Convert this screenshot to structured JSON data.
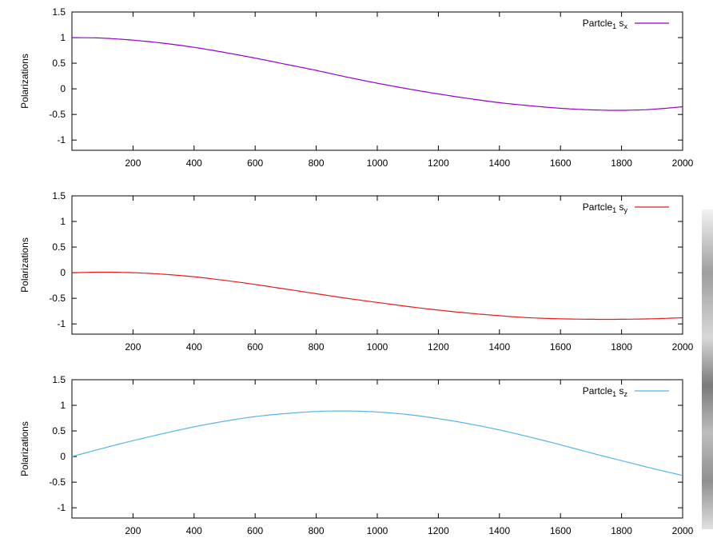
{
  "chart_data": [
    {
      "type": "line",
      "title": "",
      "xlabel": "",
      "ylabel": "Polarizations",
      "xlim": [
        0,
        2000
      ],
      "ylim": [
        -1.2,
        1.5
      ],
      "xticks": [
        "200",
        "400",
        "600",
        "800",
        "1000",
        "1200",
        "1400",
        "1600",
        "1800",
        "2000"
      ],
      "yticks": [
        "1.5",
        "1",
        "0.5",
        "0",
        "-0.5",
        "-1"
      ],
      "grid": false,
      "legend_position": "top-right",
      "series": [
        {
          "name": "Partcle",
          "name_sub": "1",
          "name_suffix": "s",
          "name_suffix_sub": "x",
          "color": "#9400d3",
          "x": [
            0,
            100,
            200,
            300,
            400,
            500,
            600,
            700,
            800,
            900,
            1000,
            1100,
            1200,
            1300,
            1400,
            1500,
            1600,
            1700,
            1800,
            1900,
            2000
          ],
          "y": [
            1.0,
            0.99,
            0.95,
            0.89,
            0.81,
            0.71,
            0.6,
            0.48,
            0.36,
            0.23,
            0.11,
            0.0,
            -0.1,
            -0.19,
            -0.27,
            -0.33,
            -0.38,
            -0.41,
            -0.42,
            -0.4,
            -0.35
          ]
        }
      ]
    },
    {
      "type": "line",
      "title": "",
      "xlabel": "",
      "ylabel": "Polarizations",
      "xlim": [
        0,
        2000
      ],
      "ylim": [
        -1.2,
        1.5
      ],
      "xticks": [
        "200",
        "400",
        "600",
        "800",
        "1000",
        "1200",
        "1400",
        "1600",
        "1800",
        "2000"
      ],
      "yticks": [
        "1.5",
        "1",
        "0.5",
        "0",
        "-0.5",
        "-1"
      ],
      "grid": false,
      "legend_position": "top-right",
      "series": [
        {
          "name": "Partcle",
          "name_sub": "1",
          "name_suffix": "s",
          "name_suffix_sub": "y",
          "color": "#e41a1c",
          "x": [
            0,
            100,
            200,
            300,
            400,
            500,
            600,
            700,
            800,
            900,
            1000,
            1100,
            1200,
            1300,
            1400,
            1500,
            1600,
            1700,
            1800,
            1900,
            2000
          ],
          "y": [
            0.0,
            0.01,
            0.0,
            -0.03,
            -0.08,
            -0.15,
            -0.23,
            -0.32,
            -0.41,
            -0.5,
            -0.58,
            -0.66,
            -0.73,
            -0.79,
            -0.84,
            -0.88,
            -0.9,
            -0.91,
            -0.91,
            -0.9,
            -0.88
          ]
        }
      ]
    },
    {
      "type": "line",
      "title": "",
      "xlabel": "",
      "ylabel": "Polarizations",
      "xlim": [
        0,
        2000
      ],
      "ylim": [
        -1.2,
        1.5
      ],
      "xticks": [
        "200",
        "400",
        "600",
        "800",
        "1000",
        "1200",
        "1400",
        "1600",
        "1800",
        "2000"
      ],
      "yticks": [
        "1.5",
        "1",
        "0.5",
        "0",
        "-0.5",
        "-1"
      ],
      "grid": false,
      "legend_position": "top-right",
      "series": [
        {
          "name": "Partcle",
          "name_sub": "1",
          "name_suffix": "s",
          "name_suffix_sub": "z",
          "color": "#56b4e9",
          "x": [
            0,
            100,
            200,
            300,
            400,
            500,
            600,
            700,
            800,
            900,
            1000,
            1100,
            1200,
            1300,
            1400,
            1500,
            1600,
            1700,
            1800,
            1900,
            2000
          ],
          "y": [
            0.0,
            0.16,
            0.31,
            0.45,
            0.58,
            0.69,
            0.78,
            0.84,
            0.88,
            0.89,
            0.87,
            0.82,
            0.74,
            0.64,
            0.52,
            0.38,
            0.23,
            0.07,
            -0.08,
            -0.23,
            -0.37
          ]
        }
      ]
    }
  ]
}
